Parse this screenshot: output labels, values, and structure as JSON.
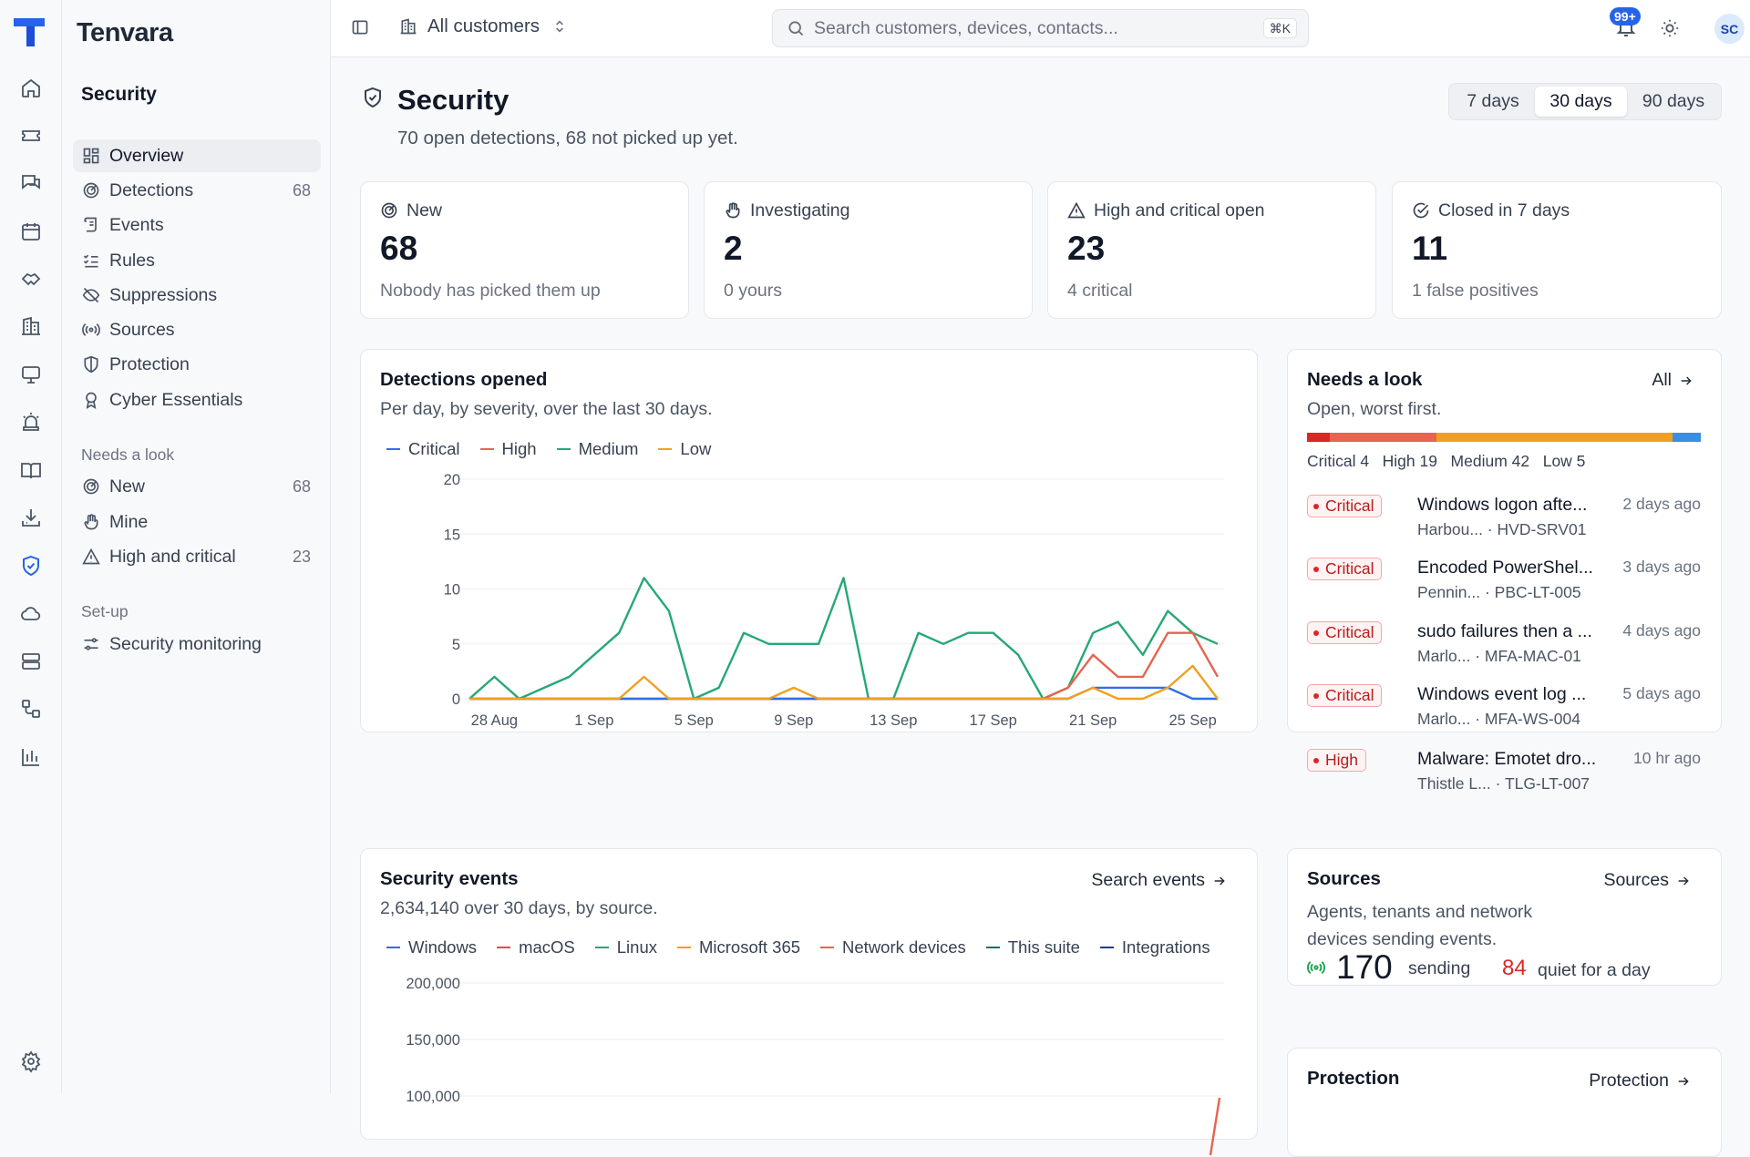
{
  "app": {
    "name": "Tenvara"
  },
  "sidebar": {
    "section_title": "Security",
    "items": [
      {
        "label": "Overview",
        "icon": "overview-icon",
        "count": ""
      },
      {
        "label": "Detections",
        "icon": "radar-icon",
        "count": "68"
      },
      {
        "label": "Events",
        "icon": "scroll-icon",
        "count": ""
      },
      {
        "label": "Rules",
        "icon": "checklist-icon",
        "count": ""
      },
      {
        "label": "Suppressions",
        "icon": "eye-off-icon",
        "count": ""
      },
      {
        "label": "Sources",
        "icon": "broadcast-icon",
        "count": ""
      },
      {
        "label": "Protection",
        "icon": "shield-half-icon",
        "count": ""
      },
      {
        "label": "Cyber Essentials",
        "icon": "award-icon",
        "count": ""
      }
    ],
    "needs_look_heading": "Needs a look",
    "needs_look_items": [
      {
        "label": "New",
        "icon": "radar-icon",
        "count": "68"
      },
      {
        "label": "Mine",
        "icon": "hand-icon",
        "count": ""
      },
      {
        "label": "High and critical",
        "icon": "warning-icon",
        "count": "23"
      }
    ],
    "setup_heading": "Set-up",
    "setup_items": [
      {
        "label": "Security monitoring",
        "icon": "sliders-icon"
      }
    ]
  },
  "topbar": {
    "scope_label": "All customers",
    "search_placeholder": "Search customers, devices, contacts...",
    "search_shortcut": "⌘K",
    "notifications_badge": "99+",
    "avatar_initials": "SC"
  },
  "page": {
    "title": "Security",
    "subtitle": "70 open detections, 68 not picked up yet.",
    "ranges": [
      "7 days",
      "30 days",
      "90 days"
    ],
    "selected_range": "30 days"
  },
  "stats": [
    {
      "label": "New",
      "icon": "radar-icon",
      "value": "68",
      "sub": "Nobody has picked them up"
    },
    {
      "label": "Investigating",
      "icon": "hand-icon",
      "value": "2",
      "sub": "0 yours"
    },
    {
      "label": "High and critical open",
      "icon": "warning-icon",
      "value": "23",
      "sub": "4 critical"
    },
    {
      "label": "Closed in 7 days",
      "icon": "check-circle-icon",
      "value": "11",
      "sub": "1 false positives"
    }
  ],
  "detections_card": {
    "title": "Detections opened",
    "subtitle": "Per day, by severity, over the last 30 days."
  },
  "needs_look_card": {
    "title": "Needs a look",
    "subtitle": "Open, worst first.",
    "link": "All",
    "severity_bar": [
      {
        "label": "Critical",
        "count": 4,
        "color": "#dc2626"
      },
      {
        "label": "High",
        "count": 19,
        "color": "#e5654f"
      },
      {
        "label": "Medium",
        "count": 42,
        "color": "#f0a020"
      },
      {
        "label": "Low",
        "count": 5,
        "color": "#3b8fe0"
      }
    ],
    "severity_text": "Critical 4   High 19   Medium 42   Low 5",
    "items": [
      {
        "severity": "Critical",
        "title": "Windows logon afte...",
        "customer": "Harbou...",
        "device": "HVD-SRV01",
        "time": "2 days ago"
      },
      {
        "severity": "Critical",
        "title": "Encoded PowerShel...",
        "customer": "Pennin...",
        "device": "PBC-LT-005",
        "time": "3 days ago"
      },
      {
        "severity": "Critical",
        "title": "sudo failures then a ...",
        "customer": "Marlo...",
        "device": "MFA-MAC-01",
        "time": "4 days ago"
      },
      {
        "severity": "Critical",
        "title": "Windows event log ...",
        "customer": "Marlo...",
        "device": "MFA-WS-004",
        "time": "5 days ago"
      },
      {
        "severity": "High",
        "title": "Malware: Emotet dro...",
        "customer": "Thistle L...",
        "device": "TLG-LT-007",
        "time": "10 hr ago"
      }
    ]
  },
  "events_card": {
    "title": "Security events",
    "subtitle": "2,634,140 over 30 days, by source.",
    "link": "Search events"
  },
  "sources_card": {
    "title": "Sources",
    "link": "Sources",
    "desc_line1": "Agents, tenants and network",
    "desc_line2": "devices sending events.",
    "sending_count": "170",
    "sending_label": "sending",
    "quiet_count": "84",
    "quiet_label": "quiet for a day"
  },
  "protection_card": {
    "title": "Protection",
    "link": "Protection"
  },
  "chart_data": [
    {
      "type": "line",
      "x": [
        "27 Aug",
        "28 Aug",
        "29 Aug",
        "30 Aug",
        "31 Aug",
        "1 Sep",
        "2 Sep",
        "3 Sep",
        "4 Sep",
        "5 Sep",
        "6 Sep",
        "7 Sep",
        "8 Sep",
        "9 Sep",
        "10 Sep",
        "11 Sep",
        "12 Sep",
        "13 Sep",
        "14 Sep",
        "15 Sep",
        "16 Sep",
        "17 Sep",
        "18 Sep",
        "19 Sep",
        "20 Sep",
        "21 Sep",
        "22 Sep",
        "23 Sep",
        "24 Sep",
        "25 Sep",
        "26 Sep"
      ],
      "xticks": [
        "28 Aug",
        "1 Sep",
        "5 Sep",
        "9 Sep",
        "13 Sep",
        "17 Sep",
        "21 Sep",
        "25 Sep"
      ],
      "series": [
        {
          "name": "Critical",
          "color": "#2f6fe4",
          "values": [
            0,
            0,
            0,
            0,
            0,
            0,
            0,
            0,
            0,
            0,
            0,
            0,
            0,
            0,
            0,
            0,
            0,
            0,
            0,
            0,
            0,
            0,
            0,
            0,
            0,
            1,
            1,
            1,
            1,
            0,
            0
          ]
        },
        {
          "name": "High",
          "color": "#e5654f",
          "values": [
            0,
            0,
            0,
            0,
            0,
            0,
            0,
            0,
            0,
            0,
            0,
            0,
            0,
            0,
            0,
            0,
            0,
            0,
            0,
            0,
            0,
            0,
            0,
            0,
            1,
            4,
            2,
            2,
            6,
            6,
            2
          ]
        },
        {
          "name": "Medium",
          "color": "#26a876",
          "values": [
            0,
            2,
            0,
            1,
            2,
            4,
            6,
            11,
            8,
            0,
            1,
            6,
            5,
            5,
            5,
            11,
            0,
            0,
            6,
            5,
            6,
            6,
            4,
            0,
            1,
            6,
            7,
            4,
            8,
            6,
            5
          ]
        },
        {
          "name": "Low",
          "color": "#f0a020",
          "values": [
            0,
            0,
            0,
            0,
            0,
            0,
            0,
            2,
            0,
            0,
            0,
            0,
            0,
            1,
            0,
            0,
            0,
            0,
            0,
            0,
            0,
            0,
            0,
            0,
            0,
            1,
            0,
            0,
            1,
            3,
            0
          ]
        }
      ],
      "ylim": [
        0,
        20
      ],
      "yticks": [
        0,
        5,
        10,
        15,
        20
      ],
      "grid": true,
      "legend": "top-left"
    },
    {
      "type": "line",
      "series": [
        {
          "name": "Windows",
          "color": "#2f6fe4"
        },
        {
          "name": "macOS",
          "color": "#e5484d"
        },
        {
          "name": "Linux",
          "color": "#26a876"
        },
        {
          "name": "Microsoft 365",
          "color": "#f0a020"
        },
        {
          "name": "Network devices",
          "color": "#e5654f"
        },
        {
          "name": "This suite",
          "color": "#1f6f5f"
        },
        {
          "name": "Integrations",
          "color": "#1e3a9a"
        }
      ],
      "yticks": [
        100000,
        150000,
        200000
      ],
      "ytick_labels": [
        "100,000",
        "150,000",
        "200,000"
      ],
      "grid": true,
      "legend": "top-left"
    }
  ]
}
